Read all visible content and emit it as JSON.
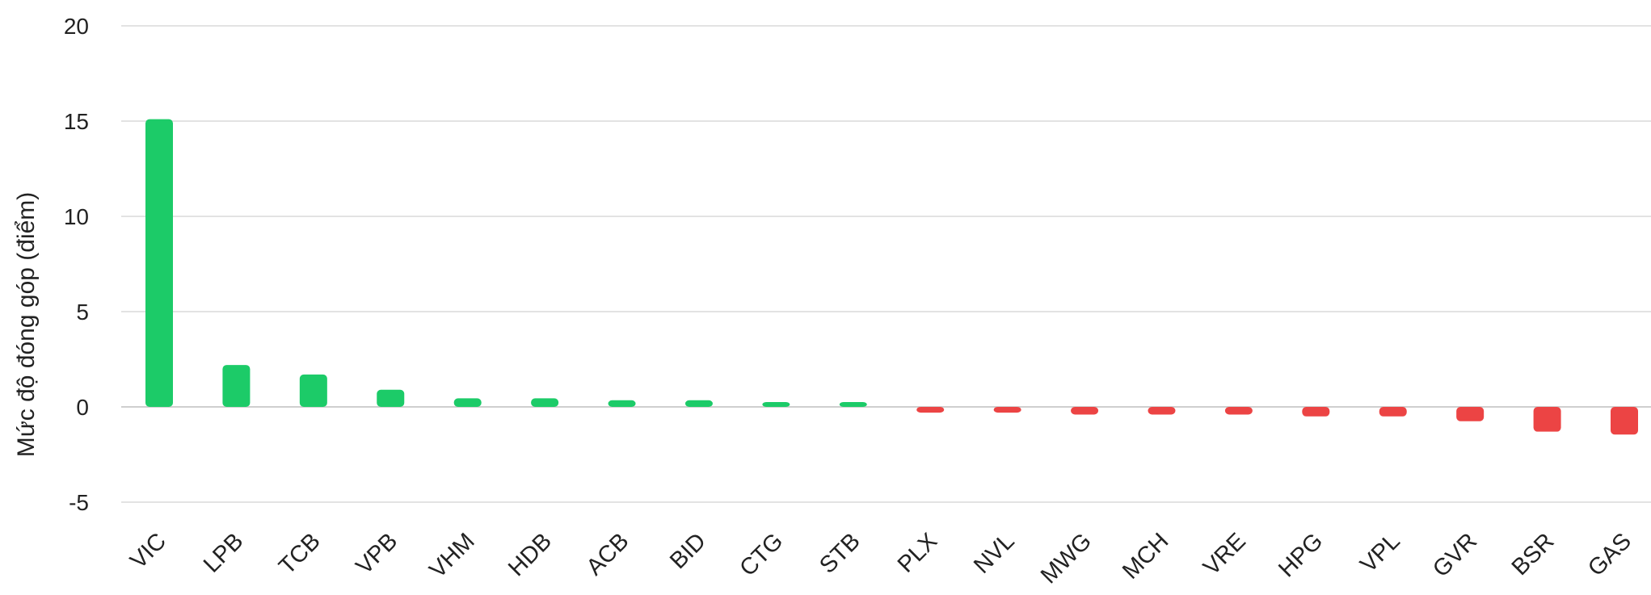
{
  "chart_data": {
    "type": "bar",
    "ylabel": "Mức độ đóng góp (điểm)",
    "xlabel": "",
    "title": "",
    "ylim": [
      -5,
      20
    ],
    "yticks": [
      -5,
      0,
      5,
      10,
      15,
      20
    ],
    "grid": true,
    "categories": [
      "VIC",
      "LPB",
      "TCB",
      "VPB",
      "VHM",
      "HDB",
      "ACB",
      "BID",
      "CTG",
      "STB",
      "PLX",
      "NVL",
      "MWG",
      "MCH",
      "VRE",
      "HPG",
      "VPL",
      "GVR",
      "BSR",
      "GAS"
    ],
    "values": [
      15.1,
      2.2,
      1.7,
      0.9,
      0.45,
      0.45,
      0.35,
      0.35,
      0.25,
      0.25,
      -0.3,
      -0.3,
      -0.4,
      -0.4,
      -0.4,
      -0.5,
      -0.5,
      -0.75,
      -1.3,
      -1.45
    ],
    "colors": {
      "positive": "#1ccb68",
      "negative": "#ec4444"
    }
  }
}
